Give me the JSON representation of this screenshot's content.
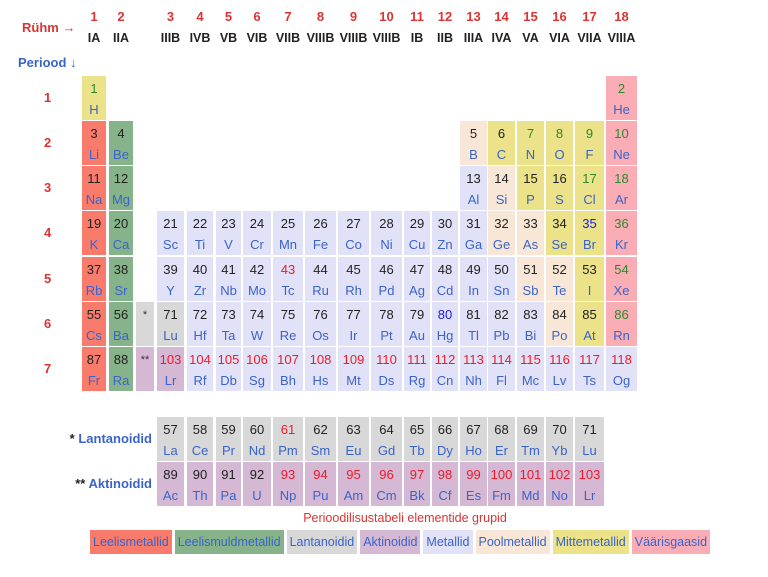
{
  "header": {
    "group_label": "Rühm →",
    "period_label": "Periood ↓"
  },
  "groups": [
    {
      "n": "1",
      "r": "IA"
    },
    {
      "n": "2",
      "r": "IIA"
    },
    {
      "n": "3",
      "r": "IIIB"
    },
    {
      "n": "4",
      "r": "IVB"
    },
    {
      "n": "5",
      "r": "VB"
    },
    {
      "n": "6",
      "r": "VIB"
    },
    {
      "n": "7",
      "r": "VIIB"
    },
    {
      "n": "8",
      "r": "VIIIB"
    },
    {
      "n": "9",
      "r": "VIIIB"
    },
    {
      "n": "10",
      "r": "VIIIB"
    },
    {
      "n": "11",
      "r": "IB"
    },
    {
      "n": "12",
      "r": "IIB"
    },
    {
      "n": "13",
      "r": "IIIA"
    },
    {
      "n": "14",
      "r": "IVA"
    },
    {
      "n": "15",
      "r": "VA"
    },
    {
      "n": "16",
      "r": "VIA"
    },
    {
      "n": "17",
      "r": "VIIA"
    },
    {
      "n": "18",
      "r": "VIIIA"
    }
  ],
  "colors": {
    "a": "#f97b6c",
    "ae": "#86b389",
    "ln": "#d8d8d8",
    "ac": "#d5b8d3",
    "m": "#e1e1f7",
    "ml": "#f8e7d6",
    "nm": "#ebe289",
    "ng": "#fbadb6"
  },
  "state_colors": {
    "solid": "#222222",
    "gas": "#2a8a2a",
    "liquid": "#1a1aee",
    "synthetic": "#ee1a2a"
  },
  "periods": [
    {
      "label": "1",
      "elements": [
        {
          "z": "1",
          "s": "H",
          "g": 1,
          "c": "nm",
          "st": "gas"
        },
        {
          "z": "2",
          "s": "He",
          "g": 18,
          "c": "ng",
          "st": "gas"
        }
      ]
    },
    {
      "label": "2",
      "elements": [
        {
          "z": "3",
          "s": "Li",
          "g": 1,
          "c": "a",
          "st": "solid"
        },
        {
          "z": "4",
          "s": "Be",
          "g": 2,
          "c": "ae",
          "st": "solid"
        },
        {
          "z": "5",
          "s": "B",
          "g": 13,
          "c": "ml",
          "st": "solid"
        },
        {
          "z": "6",
          "s": "C",
          "g": 14,
          "c": "nm",
          "st": "solid"
        },
        {
          "z": "7",
          "s": "N",
          "g": 15,
          "c": "nm",
          "st": "gas"
        },
        {
          "z": "8",
          "s": "O",
          "g": 16,
          "c": "nm",
          "st": "gas"
        },
        {
          "z": "9",
          "s": "F",
          "g": 17,
          "c": "nm",
          "st": "gas"
        },
        {
          "z": "10",
          "s": "Ne",
          "g": 18,
          "c": "ng",
          "st": "gas"
        }
      ]
    },
    {
      "label": "3",
      "elements": [
        {
          "z": "11",
          "s": "Na",
          "g": 1,
          "c": "a",
          "st": "solid"
        },
        {
          "z": "12",
          "s": "Mg",
          "g": 2,
          "c": "ae",
          "st": "solid"
        },
        {
          "z": "13",
          "s": "Al",
          "g": 13,
          "c": "m",
          "st": "solid"
        },
        {
          "z": "14",
          "s": "Si",
          "g": 14,
          "c": "ml",
          "st": "solid"
        },
        {
          "z": "15",
          "s": "P",
          "g": 15,
          "c": "nm",
          "st": "solid"
        },
        {
          "z": "16",
          "s": "S",
          "g": 16,
          "c": "nm",
          "st": "solid"
        },
        {
          "z": "17",
          "s": "Cl",
          "g": 17,
          "c": "nm",
          "st": "gas"
        },
        {
          "z": "18",
          "s": "Ar",
          "g": 18,
          "c": "ng",
          "st": "gas"
        }
      ]
    },
    {
      "label": "4",
      "elements": [
        {
          "z": "19",
          "s": "K",
          "g": 1,
          "c": "a",
          "st": "solid"
        },
        {
          "z": "20",
          "s": "Ca",
          "g": 2,
          "c": "ae",
          "st": "solid"
        },
        {
          "z": "21",
          "s": "Sc",
          "g": 3,
          "c": "m",
          "st": "solid"
        },
        {
          "z": "22",
          "s": "Ti",
          "g": 4,
          "c": "m",
          "st": "solid"
        },
        {
          "z": "23",
          "s": "V",
          "g": 5,
          "c": "m",
          "st": "solid"
        },
        {
          "z": "24",
          "s": "Cr",
          "g": 6,
          "c": "m",
          "st": "solid"
        },
        {
          "z": "25",
          "s": "Mn",
          "g": 7,
          "c": "m",
          "st": "solid"
        },
        {
          "z": "26",
          "s": "Fe",
          "g": 8,
          "c": "m",
          "st": "solid"
        },
        {
          "z": "27",
          "s": "Co",
          "g": 9,
          "c": "m",
          "st": "solid"
        },
        {
          "z": "28",
          "s": "Ni",
          "g": 10,
          "c": "m",
          "st": "solid"
        },
        {
          "z": "29",
          "s": "Cu",
          "g": 11,
          "c": "m",
          "st": "solid"
        },
        {
          "z": "30",
          "s": "Zn",
          "g": 12,
          "c": "m",
          "st": "solid"
        },
        {
          "z": "31",
          "s": "Ga",
          "g": 13,
          "c": "m",
          "st": "solid"
        },
        {
          "z": "32",
          "s": "Ge",
          "g": 14,
          "c": "ml",
          "st": "solid"
        },
        {
          "z": "33",
          "s": "As",
          "g": 15,
          "c": "ml",
          "st": "solid"
        },
        {
          "z": "34",
          "s": "Se",
          "g": 16,
          "c": "nm",
          "st": "solid"
        },
        {
          "z": "35",
          "s": "Br",
          "g": 17,
          "c": "nm",
          "st": "liquid"
        },
        {
          "z": "36",
          "s": "Kr",
          "g": 18,
          "c": "ng",
          "st": "gas"
        }
      ]
    },
    {
      "label": "5",
      "elements": [
        {
          "z": "37",
          "s": "Rb",
          "g": 1,
          "c": "a",
          "st": "solid"
        },
        {
          "z": "38",
          "s": "Sr",
          "g": 2,
          "c": "ae",
          "st": "solid"
        },
        {
          "z": "39",
          "s": "Y",
          "g": 3,
          "c": "m",
          "st": "solid"
        },
        {
          "z": "40",
          "s": "Zr",
          "g": 4,
          "c": "m",
          "st": "solid"
        },
        {
          "z": "41",
          "s": "Nb",
          "g": 5,
          "c": "m",
          "st": "solid"
        },
        {
          "z": "42",
          "s": "Mo",
          "g": 6,
          "c": "m",
          "st": "solid"
        },
        {
          "z": "43",
          "s": "Tc",
          "g": 7,
          "c": "m",
          "st": "synthetic"
        },
        {
          "z": "44",
          "s": "Ru",
          "g": 8,
          "c": "m",
          "st": "solid"
        },
        {
          "z": "45",
          "s": "Rh",
          "g": 9,
          "c": "m",
          "st": "solid"
        },
        {
          "z": "46",
          "s": "Pd",
          "g": 10,
          "c": "m",
          "st": "solid"
        },
        {
          "z": "47",
          "s": "Ag",
          "g": 11,
          "c": "m",
          "st": "solid"
        },
        {
          "z": "48",
          "s": "Cd",
          "g": 12,
          "c": "m",
          "st": "solid"
        },
        {
          "z": "49",
          "s": "In",
          "g": 13,
          "c": "m",
          "st": "solid"
        },
        {
          "z": "50",
          "s": "Sn",
          "g": 14,
          "c": "m",
          "st": "solid"
        },
        {
          "z": "51",
          "s": "Sb",
          "g": 15,
          "c": "ml",
          "st": "solid"
        },
        {
          "z": "52",
          "s": "Te",
          "g": 16,
          "c": "ml",
          "st": "solid"
        },
        {
          "z": "53",
          "s": "I",
          "g": 17,
          "c": "nm",
          "st": "solid"
        },
        {
          "z": "54",
          "s": "Xe",
          "g": 18,
          "c": "ng",
          "st": "gas"
        }
      ]
    },
    {
      "label": "6",
      "elements": [
        {
          "z": "55",
          "s": "Cs",
          "g": 1,
          "c": "a",
          "st": "solid"
        },
        {
          "z": "56",
          "s": "Ba",
          "g": 2,
          "c": "ae",
          "st": "solid"
        },
        {
          "z": "*",
          "s": "",
          "g": 0,
          "c": "ln",
          "st": "solid"
        },
        {
          "z": "71",
          "s": "Lu",
          "g": 3,
          "c": "ln",
          "st": "solid"
        },
        {
          "z": "72",
          "s": "Hf",
          "g": 4,
          "c": "m",
          "st": "solid"
        },
        {
          "z": "73",
          "s": "Ta",
          "g": 5,
          "c": "m",
          "st": "solid"
        },
        {
          "z": "74",
          "s": "W",
          "g": 6,
          "c": "m",
          "st": "solid"
        },
        {
          "z": "75",
          "s": "Re",
          "g": 7,
          "c": "m",
          "st": "solid"
        },
        {
          "z": "76",
          "s": "Os",
          "g": 8,
          "c": "m",
          "st": "solid"
        },
        {
          "z": "77",
          "s": "Ir",
          "g": 9,
          "c": "m",
          "st": "solid"
        },
        {
          "z": "78",
          "s": "Pt",
          "g": 10,
          "c": "m",
          "st": "solid"
        },
        {
          "z": "79",
          "s": "Au",
          "g": 11,
          "c": "m",
          "st": "solid"
        },
        {
          "z": "80",
          "s": "Hg",
          "g": 12,
          "c": "m",
          "st": "liquid"
        },
        {
          "z": "81",
          "s": "Tl",
          "g": 13,
          "c": "m",
          "st": "solid"
        },
        {
          "z": "82",
          "s": "Pb",
          "g": 14,
          "c": "m",
          "st": "solid"
        },
        {
          "z": "83",
          "s": "Bi",
          "g": 15,
          "c": "m",
          "st": "solid"
        },
        {
          "z": "84",
          "s": "Po",
          "g": 16,
          "c": "ml",
          "st": "solid"
        },
        {
          "z": "85",
          "s": "At",
          "g": 17,
          "c": "nm",
          "st": "solid"
        },
        {
          "z": "86",
          "s": "Rn",
          "g": 18,
          "c": "ng",
          "st": "gas"
        }
      ]
    },
    {
      "label": "7",
      "elements": [
        {
          "z": "87",
          "s": "Fr",
          "g": 1,
          "c": "a",
          "st": "solid"
        },
        {
          "z": "88",
          "s": "Ra",
          "g": 2,
          "c": "ae",
          "st": "solid"
        },
        {
          "z": "**",
          "s": "",
          "g": 0,
          "c": "ac",
          "st": "solid"
        },
        {
          "z": "103",
          "s": "Lr",
          "g": 3,
          "c": "ac",
          "st": "synthetic"
        },
        {
          "z": "104",
          "s": "Rf",
          "g": 4,
          "c": "m",
          "st": "synthetic"
        },
        {
          "z": "105",
          "s": "Db",
          "g": 5,
          "c": "m",
          "st": "synthetic"
        },
        {
          "z": "106",
          "s": "Sg",
          "g": 6,
          "c": "m",
          "st": "synthetic"
        },
        {
          "z": "107",
          "s": "Bh",
          "g": 7,
          "c": "m",
          "st": "synthetic"
        },
        {
          "z": "108",
          "s": "Hs",
          "g": 8,
          "c": "m",
          "st": "synthetic"
        },
        {
          "z": "109",
          "s": "Mt",
          "g": 9,
          "c": "m",
          "st": "synthetic"
        },
        {
          "z": "110",
          "s": "Ds",
          "g": 10,
          "c": "m",
          "st": "synthetic"
        },
        {
          "z": "111",
          "s": "Rg",
          "g": 11,
          "c": "m",
          "st": "synthetic"
        },
        {
          "z": "112",
          "s": "Cn",
          "g": 12,
          "c": "m",
          "st": "synthetic"
        },
        {
          "z": "113",
          "s": "Nh",
          "g": 13,
          "c": "m",
          "st": "synthetic"
        },
        {
          "z": "114",
          "s": "Fl",
          "g": 14,
          "c": "m",
          "st": "synthetic"
        },
        {
          "z": "115",
          "s": "Mc",
          "g": 15,
          "c": "m",
          "st": "synthetic"
        },
        {
          "z": "116",
          "s": "Lv",
          "g": 16,
          "c": "m",
          "st": "synthetic"
        },
        {
          "z": "117",
          "s": "Ts",
          "g": 17,
          "c": "m",
          "st": "synthetic"
        },
        {
          "z": "118",
          "s": "Og",
          "g": 18,
          "c": "m",
          "st": "synthetic"
        }
      ]
    }
  ],
  "series": [
    {
      "marker": "*",
      "label": "Lantanoidid",
      "elements": [
        {
          "z": "57",
          "s": "La",
          "c": "ln",
          "st": "solid"
        },
        {
          "z": "58",
          "s": "Ce",
          "c": "ln",
          "st": "solid"
        },
        {
          "z": "59",
          "s": "Pr",
          "c": "ln",
          "st": "solid"
        },
        {
          "z": "60",
          "s": "Nd",
          "c": "ln",
          "st": "solid"
        },
        {
          "z": "61",
          "s": "Pm",
          "c": "ln",
          "st": "synthetic"
        },
        {
          "z": "62",
          "s": "Sm",
          "c": "ln",
          "st": "solid"
        },
        {
          "z": "63",
          "s": "Eu",
          "c": "ln",
          "st": "solid"
        },
        {
          "z": "64",
          "s": "Gd",
          "c": "ln",
          "st": "solid"
        },
        {
          "z": "65",
          "s": "Tb",
          "c": "ln",
          "st": "solid"
        },
        {
          "z": "66",
          "s": "Dy",
          "c": "ln",
          "st": "solid"
        },
        {
          "z": "67",
          "s": "Ho",
          "c": "ln",
          "st": "solid"
        },
        {
          "z": "68",
          "s": "Er",
          "c": "ln",
          "st": "solid"
        },
        {
          "z": "69",
          "s": "Tm",
          "c": "ln",
          "st": "solid"
        },
        {
          "z": "70",
          "s": "Yb",
          "c": "ln",
          "st": "solid"
        },
        {
          "z": "71",
          "s": "Lu",
          "c": "ln",
          "st": "solid"
        }
      ]
    },
    {
      "marker": "**",
      "label": "Aktinoidid",
      "elements": [
        {
          "z": "89",
          "s": "Ac",
          "c": "ac",
          "st": "solid"
        },
        {
          "z": "90",
          "s": "Th",
          "c": "ac",
          "st": "solid"
        },
        {
          "z": "91",
          "s": "Pa",
          "c": "ac",
          "st": "solid"
        },
        {
          "z": "92",
          "s": "U",
          "c": "ac",
          "st": "solid"
        },
        {
          "z": "93",
          "s": "Np",
          "c": "ac",
          "st": "synthetic"
        },
        {
          "z": "94",
          "s": "Pu",
          "c": "ac",
          "st": "synthetic"
        },
        {
          "z": "95",
          "s": "Am",
          "c": "ac",
          "st": "synthetic"
        },
        {
          "z": "96",
          "s": "Cm",
          "c": "ac",
          "st": "synthetic"
        },
        {
          "z": "97",
          "s": "Bk",
          "c": "ac",
          "st": "synthetic"
        },
        {
          "z": "98",
          "s": "Cf",
          "c": "ac",
          "st": "synthetic"
        },
        {
          "z": "99",
          "s": "Es",
          "c": "ac",
          "st": "synthetic"
        },
        {
          "z": "100",
          "s": "Fm",
          "c": "ac",
          "st": "synthetic"
        },
        {
          "z": "101",
          "s": "Md",
          "c": "ac",
          "st": "synthetic"
        },
        {
          "z": "102",
          "s": "No",
          "c": "ac",
          "st": "synthetic"
        },
        {
          "z": "103",
          "s": "Lr",
          "c": "ac",
          "st": "synthetic"
        }
      ]
    }
  ],
  "caption": "Perioodilisustabeli elementide grupid",
  "legend": [
    {
      "c": "a",
      "label": "Leelismetallid"
    },
    {
      "c": "ae",
      "label": "Leelismuldmetallid"
    },
    {
      "c": "ln",
      "label": "Lantanoidid"
    },
    {
      "c": "ac",
      "label": "Aktinoidid"
    },
    {
      "c": "m",
      "label": "Metallid"
    },
    {
      "c": "ml",
      "label": "Poolmetallid"
    },
    {
      "c": "nm",
      "label": "Mittemetallid"
    },
    {
      "c": "ng",
      "label": "Väärisgaasid"
    }
  ]
}
